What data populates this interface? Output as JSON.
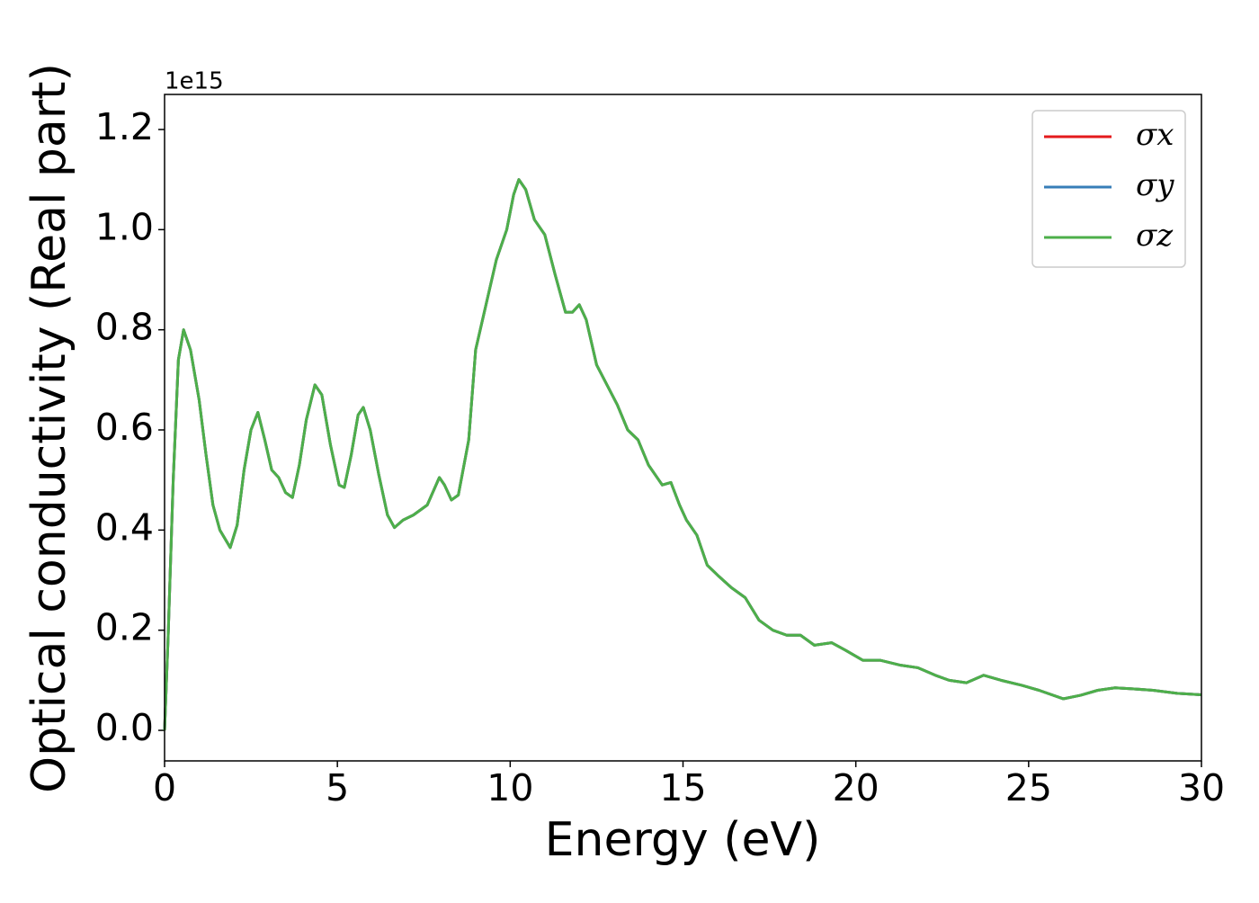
{
  "chart_data": {
    "type": "line",
    "xlabel": "Energy (eV)",
    "ylabel": "Optical conductivity (Real part)",
    "y_offset_text": "1e15",
    "xlim": [
      0,
      30
    ],
    "ylim": [
      -0.061,
      1.27
    ],
    "xticks": [
      0,
      5,
      10,
      15,
      20,
      25,
      30
    ],
    "yticks": [
      {
        "value": 0,
        "label": "0.0"
      },
      {
        "value": 0.2,
        "label": "0.2"
      },
      {
        "value": 0.4,
        "label": "0.4"
      },
      {
        "value": 0.6,
        "label": "0.6"
      },
      {
        "value": 0.8,
        "label": "0.8"
      },
      {
        "value": 1.0,
        "label": "1.0"
      },
      {
        "value": 1.2,
        "label": "1.2"
      }
    ],
    "legend": "upper right",
    "x": [
      0,
      0.1,
      0.25,
      0.4,
      0.55,
      0.75,
      1.0,
      1.2,
      1.4,
      1.6,
      1.9,
      2.1,
      2.3,
      2.5,
      2.7,
      2.9,
      3.1,
      3.3,
      3.5,
      3.7,
      3.9,
      4.1,
      4.35,
      4.55,
      4.8,
      5.05,
      5.2,
      5.4,
      5.6,
      5.75,
      5.95,
      6.2,
      6.45,
      6.65,
      6.9,
      7.2,
      7.6,
      7.95,
      8.1,
      8.3,
      8.5,
      8.8,
      9.0,
      9.3,
      9.6,
      9.9,
      10.1,
      10.25,
      10.45,
      10.7,
      11.0,
      11.3,
      11.6,
      11.8,
      12.0,
      12.2,
      12.5,
      12.8,
      13.1,
      13.4,
      13.7,
      14.0,
      14.3,
      14.4,
      14.65,
      14.9,
      15.1,
      15.4,
      15.7,
      16.0,
      16.4,
      16.8,
      17.2,
      17.6,
      18.0,
      18.4,
      18.8,
      19.3,
      19.7,
      20.2,
      20.7,
      21.3,
      21.8,
      22.3,
      22.7,
      23.2,
      23.7,
      24.2,
      24.8,
      25.3,
      26.0,
      26.5,
      27.0,
      27.5,
      28.0,
      28.6,
      29.3,
      30
    ],
    "series": [
      {
        "name": "σx",
        "color": "#e41a1c",
        "values": [
          0.0,
          0.18,
          0.5,
          0.74,
          0.8,
          0.76,
          0.66,
          0.55,
          0.45,
          0.4,
          0.365,
          0.41,
          0.52,
          0.6,
          0.635,
          0.58,
          0.52,
          0.505,
          0.475,
          0.465,
          0.53,
          0.62,
          0.69,
          0.67,
          0.57,
          0.49,
          0.485,
          0.55,
          0.63,
          0.645,
          0.6,
          0.51,
          0.43,
          0.405,
          0.42,
          0.43,
          0.45,
          0.505,
          0.49,
          0.46,
          0.47,
          0.58,
          0.76,
          0.85,
          0.94,
          1.0,
          1.07,
          1.1,
          1.08,
          1.02,
          0.99,
          0.91,
          0.835,
          0.835,
          0.85,
          0.82,
          0.73,
          0.69,
          0.65,
          0.6,
          0.58,
          0.53,
          0.5,
          0.49,
          0.495,
          0.45,
          0.42,
          0.39,
          0.33,
          0.31,
          0.285,
          0.265,
          0.22,
          0.2,
          0.19,
          0.19,
          0.17,
          0.175,
          0.16,
          0.14,
          0.14,
          0.13,
          0.125,
          0.11,
          0.1,
          0.095,
          0.11,
          0.1,
          0.09,
          0.08,
          0.063,
          0.07,
          0.08,
          0.085,
          0.083,
          0.08,
          0.074,
          0.071
        ]
      },
      {
        "name": "σy",
        "color": "#377eb8",
        "values": [
          0.0,
          0.18,
          0.5,
          0.74,
          0.8,
          0.76,
          0.66,
          0.55,
          0.45,
          0.4,
          0.365,
          0.41,
          0.52,
          0.6,
          0.635,
          0.58,
          0.52,
          0.505,
          0.475,
          0.465,
          0.53,
          0.62,
          0.69,
          0.67,
          0.57,
          0.49,
          0.485,
          0.55,
          0.63,
          0.645,
          0.6,
          0.51,
          0.43,
          0.405,
          0.42,
          0.43,
          0.45,
          0.505,
          0.49,
          0.46,
          0.47,
          0.58,
          0.76,
          0.85,
          0.94,
          1.0,
          1.07,
          1.1,
          1.08,
          1.02,
          0.99,
          0.91,
          0.835,
          0.835,
          0.85,
          0.82,
          0.73,
          0.69,
          0.65,
          0.6,
          0.58,
          0.53,
          0.5,
          0.49,
          0.495,
          0.45,
          0.42,
          0.39,
          0.33,
          0.31,
          0.285,
          0.265,
          0.22,
          0.2,
          0.19,
          0.19,
          0.17,
          0.175,
          0.16,
          0.14,
          0.14,
          0.13,
          0.125,
          0.11,
          0.1,
          0.095,
          0.11,
          0.1,
          0.09,
          0.08,
          0.063,
          0.07,
          0.08,
          0.085,
          0.083,
          0.08,
          0.074,
          0.071
        ]
      },
      {
        "name": "σz",
        "color": "#4daf4a",
        "values": [
          0.0,
          0.18,
          0.5,
          0.74,
          0.8,
          0.76,
          0.66,
          0.55,
          0.45,
          0.4,
          0.365,
          0.41,
          0.52,
          0.6,
          0.635,
          0.58,
          0.52,
          0.505,
          0.475,
          0.465,
          0.53,
          0.62,
          0.69,
          0.67,
          0.57,
          0.49,
          0.485,
          0.55,
          0.63,
          0.645,
          0.6,
          0.51,
          0.43,
          0.405,
          0.42,
          0.43,
          0.45,
          0.505,
          0.49,
          0.46,
          0.47,
          0.58,
          0.76,
          0.85,
          0.94,
          1.0,
          1.07,
          1.1,
          1.08,
          1.02,
          0.99,
          0.91,
          0.835,
          0.835,
          0.85,
          0.82,
          0.73,
          0.69,
          0.65,
          0.6,
          0.58,
          0.53,
          0.5,
          0.49,
          0.495,
          0.45,
          0.42,
          0.39,
          0.33,
          0.31,
          0.285,
          0.265,
          0.22,
          0.2,
          0.19,
          0.19,
          0.17,
          0.175,
          0.16,
          0.14,
          0.14,
          0.13,
          0.125,
          0.11,
          0.1,
          0.095,
          0.11,
          0.1,
          0.09,
          0.08,
          0.063,
          0.07,
          0.08,
          0.085,
          0.083,
          0.08,
          0.074,
          0.071
        ]
      }
    ]
  }
}
